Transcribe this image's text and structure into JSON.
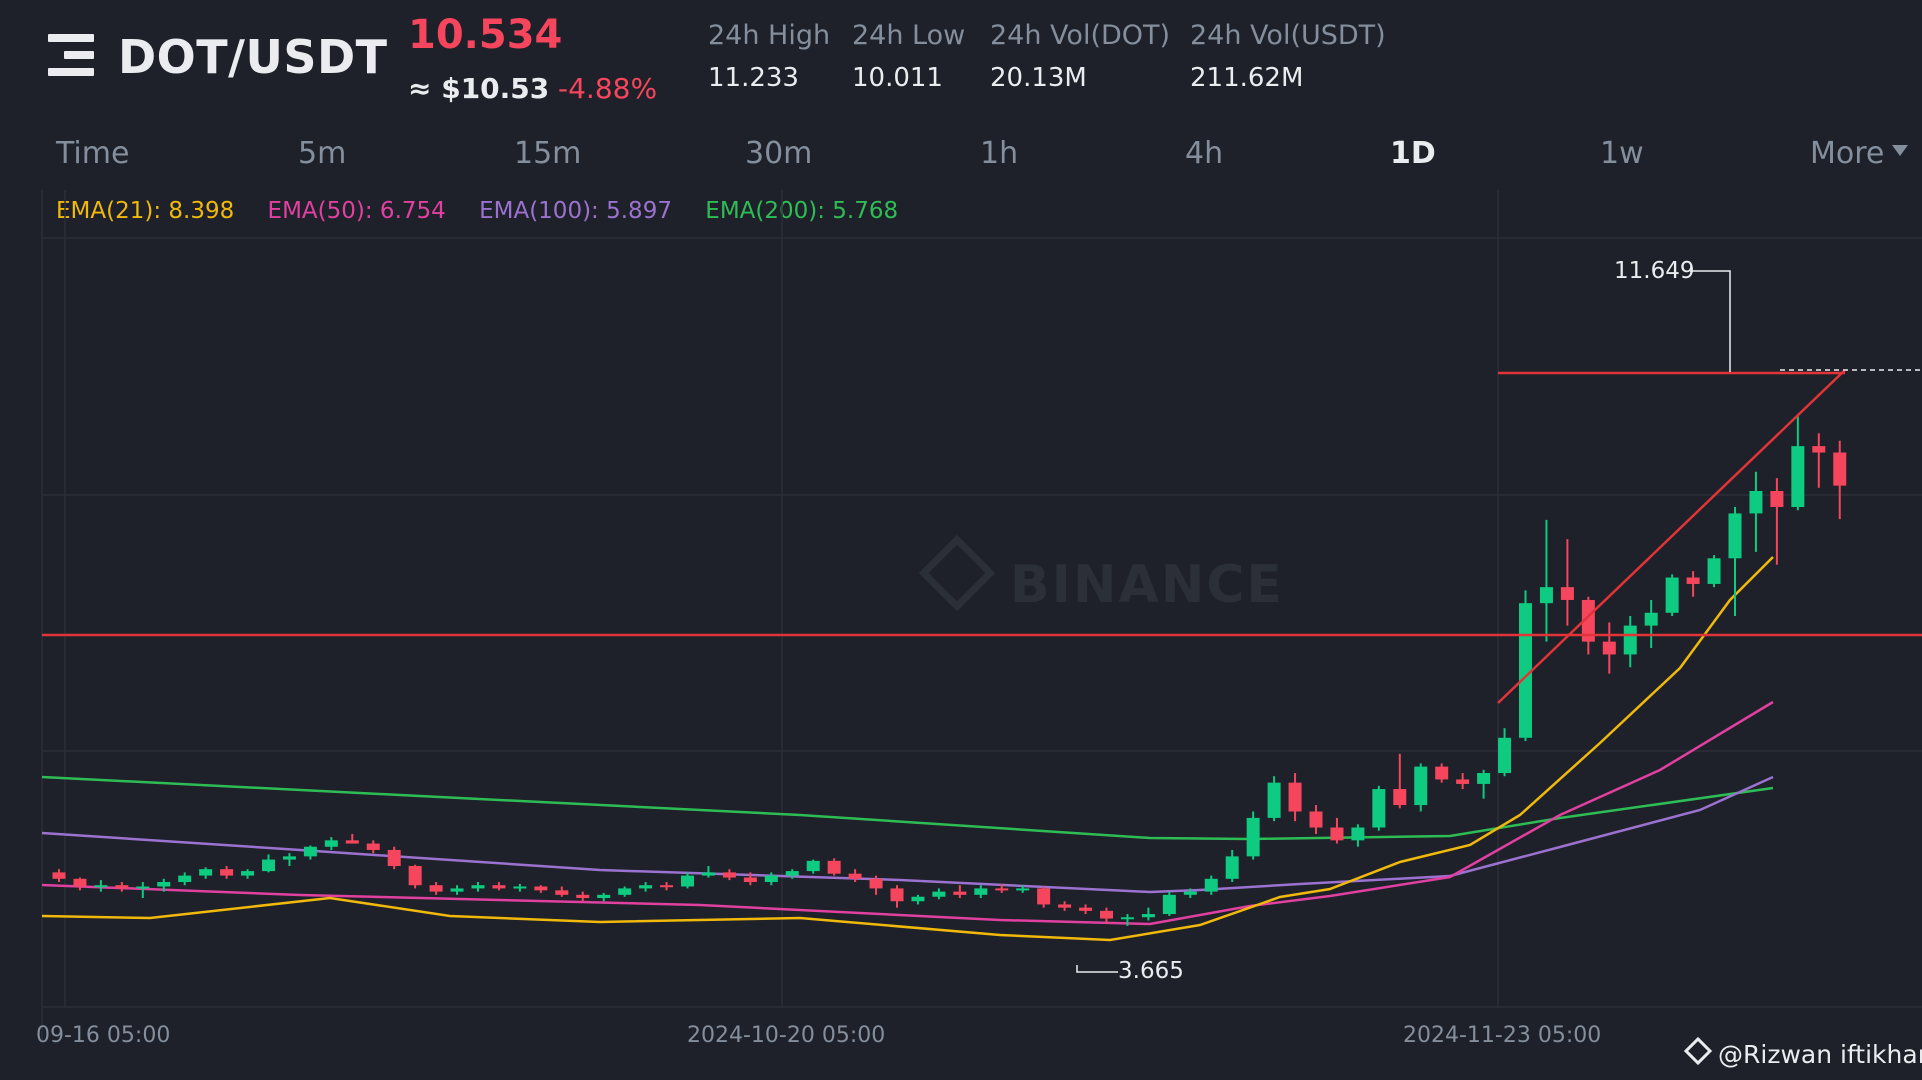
{
  "header": {
    "pair": "DOT/USDT",
    "last_price": "10.534",
    "usd_price": "≈ $10.53",
    "change_pct": "-4.88%",
    "stats": [
      {
        "label": "24h High",
        "value": "11.233"
      },
      {
        "label": "24h Low",
        "value": "10.011"
      },
      {
        "label": "24h Vol(DOT)",
        "value": "20.13M"
      },
      {
        "label": "24h Vol(USDT)",
        "value": "211.62M"
      }
    ]
  },
  "tabs": [
    "Time",
    "5m",
    "15m",
    "30m",
    "1h",
    "4h",
    "1D",
    "1w",
    "More"
  ],
  "active_tab": "1D",
  "ema": [
    {
      "label": "EMA(21): 8.398",
      "color": "#f0b90b"
    },
    {
      "label": "EMA(50): 6.754",
      "color": "#e040a0"
    },
    {
      "label": "EMA(100): 5.897",
      "color": "#9b72cf"
    },
    {
      "label": "EMA(200): 5.768",
      "color": "#2ebd55"
    }
  ],
  "watermark": "BINANCE",
  "chart_annotations": {
    "high_label": "11.649",
    "low_label": "3.665"
  },
  "x_axis_labels": [
    "09-16 05:00",
    "2024-10-20 05:00",
    "2024-11-23 05:00"
  ],
  "credit": "@Rizwan iftikhar",
  "colors": {
    "up": "#0ecb81",
    "down": "#f6465d",
    "background": "#1e2129",
    "trendline": "#e03438"
  }
}
